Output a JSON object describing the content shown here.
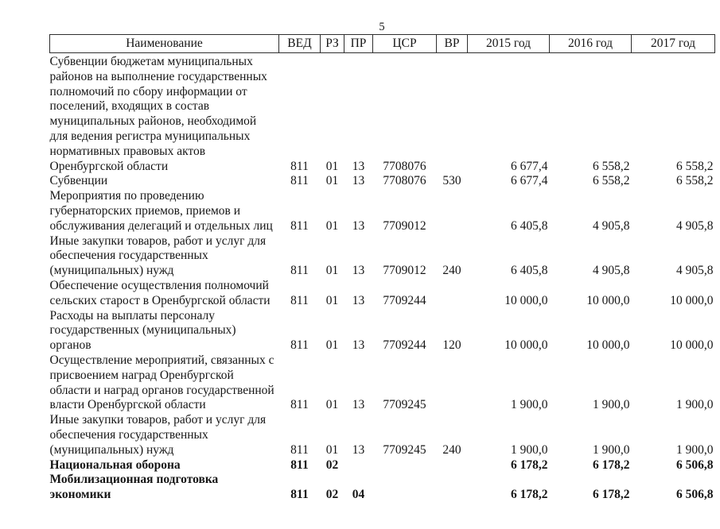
{
  "page": {
    "number": "5"
  },
  "table": {
    "headers": [
      "Наименование",
      "ВЕД",
      "РЗ",
      "ПР",
      "ЦСР",
      "ВР",
      "2015 год",
      "2016 год",
      "2017 год"
    ],
    "rows": [
      {
        "name_lines": [
          "Субвенции бюджетам муниципальных",
          "районов на выполнение государственных",
          "полномочий по сбору информации от",
          "поселений, входящих в состав",
          "муниципальных районов, необходимой",
          "для ведения регистра муниципальных",
          "нормативных правовых актов",
          "Оренбургской области"
        ],
        "ved": "811",
        "rz": "01",
        "pr": "13",
        "csr": "7708076",
        "vr": "",
        "y2015": "6 677,4",
        "y2016": "6 558,2",
        "y2017": "6 558,2",
        "bold": false
      },
      {
        "name_lines": [
          "Субвенции"
        ],
        "ved": "811",
        "rz": "01",
        "pr": "13",
        "csr": "7708076",
        "vr": "530",
        "y2015": "6 677,4",
        "y2016": "6 558,2",
        "y2017": "6 558,2",
        "bold": false
      },
      {
        "name_lines": [
          "Мероприятия по проведению",
          "губернаторских приемов, приемов и",
          "обслуживания делегаций и отдельных лиц"
        ],
        "ved": "811",
        "rz": "01",
        "pr": "13",
        "csr": "7709012",
        "vr": "",
        "y2015": "6 405,8",
        "y2016": "4 905,8",
        "y2017": "4 905,8",
        "bold": false
      },
      {
        "name_lines": [
          "Иные закупки товаров, работ и услуг для",
          "обеспечения государственных",
          "(муниципальных) нужд"
        ],
        "ved": "811",
        "rz": "01",
        "pr": "13",
        "csr": "7709012",
        "vr": "240",
        "y2015": "6 405,8",
        "y2016": "4 905,8",
        "y2017": "4 905,8",
        "bold": false
      },
      {
        "name_lines": [
          "Обеспечение осуществления полномочий",
          "сельских старост в Оренбургской области"
        ],
        "ved": "811",
        "rz": "01",
        "pr": "13",
        "csr": "7709244",
        "vr": "",
        "y2015": "10 000,0",
        "y2016": "10 000,0",
        "y2017": "10 000,0",
        "bold": false
      },
      {
        "name_lines": [
          "Расходы на выплаты персоналу",
          "государственных (муниципальных)",
          "органов"
        ],
        "ved": "811",
        "rz": "01",
        "pr": "13",
        "csr": "7709244",
        "vr": "120",
        "y2015": "10 000,0",
        "y2016": "10 000,0",
        "y2017": "10 000,0",
        "bold": false
      },
      {
        "name_lines": [
          "Осуществление мероприятий, связанных с",
          "присвоением наград Оренбургской",
          "области и наград органов государственной",
          "власти Оренбургской области"
        ],
        "ved": "811",
        "rz": "01",
        "pr": "13",
        "csr": "7709245",
        "vr": "",
        "y2015": "1 900,0",
        "y2016": "1 900,0",
        "y2017": "1 900,0",
        "bold": false
      },
      {
        "name_lines": [
          "Иные закупки товаров, работ и услуг для",
          "обеспечения государственных",
          "(муниципальных) нужд"
        ],
        "ved": "811",
        "rz": "01",
        "pr": "13",
        "csr": "7709245",
        "vr": "240",
        "y2015": "1 900,0",
        "y2016": "1 900,0",
        "y2017": "1 900,0",
        "bold": false
      },
      {
        "name_lines": [
          "Национальная оборона"
        ],
        "ved": "811",
        "rz": "02",
        "pr": "",
        "csr": "",
        "vr": "",
        "y2015": "6 178,2",
        "y2016": "6 178,2",
        "y2017": "6 506,8",
        "bold": true
      },
      {
        "name_lines": [
          "Мобилизационная подготовка",
          "экономики"
        ],
        "ved": "811",
        "rz": "02",
        "pr": "04",
        "csr": "",
        "vr": "",
        "y2015": "6 178,2",
        "y2016": "6 178,2",
        "y2017": "6 506,8",
        "bold": true
      }
    ]
  }
}
